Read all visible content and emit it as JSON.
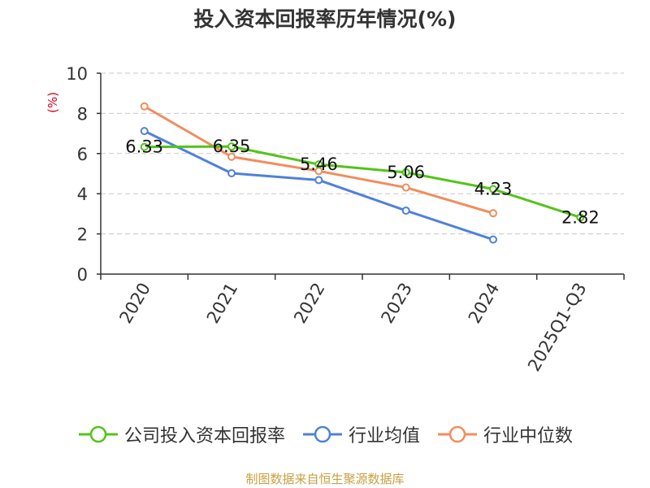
{
  "chart_data": {
    "type": "line",
    "title": "投入资本回报率历年情况(%)",
    "ylabel": "(%)",
    "xlabel": "",
    "categories": [
      "2020",
      "2021",
      "2022",
      "2023",
      "2024",
      "2025Q1-Q3"
    ],
    "ylim": [
      0,
      10
    ],
    "yticks": [
      0,
      2,
      4,
      6,
      8,
      10
    ],
    "grid": true,
    "legend_position": "bottom",
    "series": [
      {
        "name": "公司投入资本回报率",
        "color": "#52c41a",
        "values": [
          6.33,
          6.35,
          5.46,
          5.06,
          4.23,
          2.82
        ],
        "show_labels": true
      },
      {
        "name": "行业均值",
        "color": "#4f81d9",
        "values": [
          7.12,
          5.02,
          4.68,
          3.16,
          1.72,
          null
        ],
        "show_labels": false
      },
      {
        "name": "行业中位数",
        "color": "#f28c5c",
        "values": [
          8.35,
          5.84,
          5.13,
          4.31,
          3.03,
          null
        ],
        "show_labels": false
      }
    ]
  },
  "source": "制图数据来自恒生聚源数据库"
}
